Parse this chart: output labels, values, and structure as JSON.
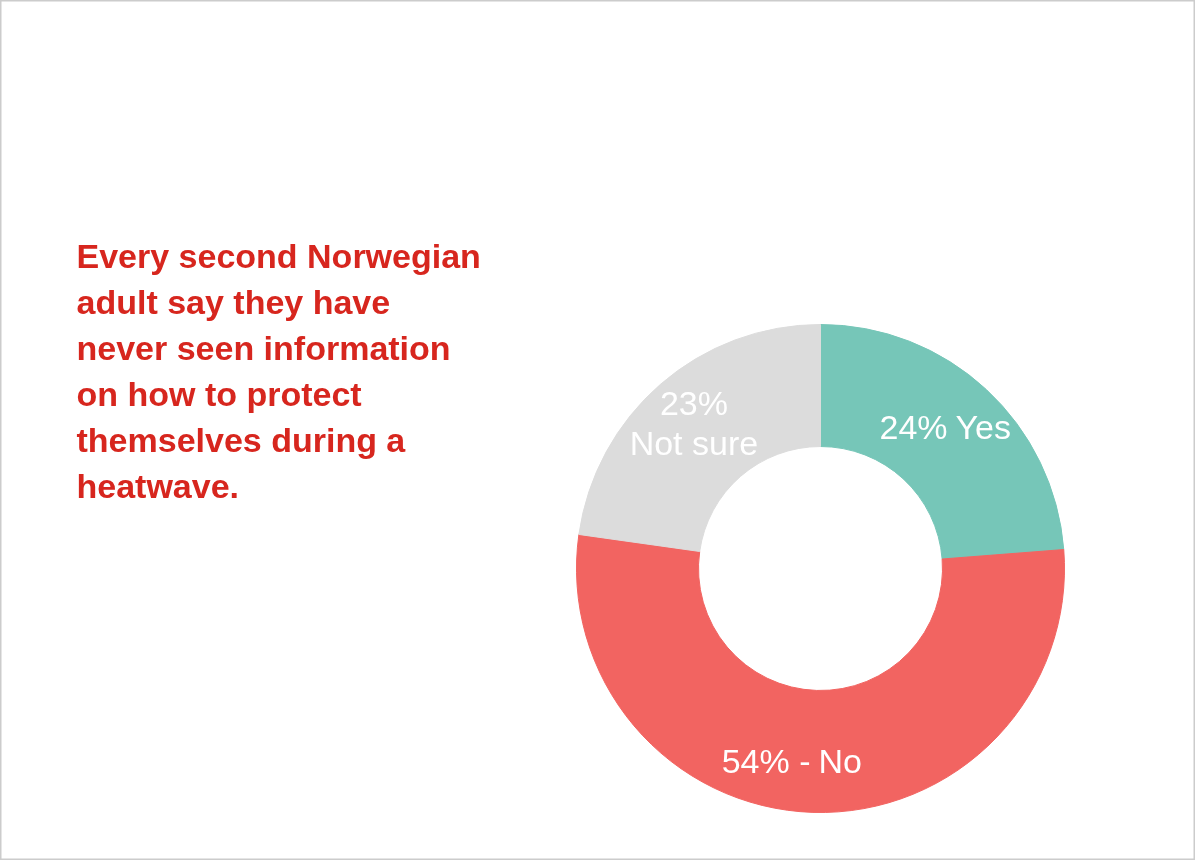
{
  "chart_data": {
    "type": "donut",
    "title": "Every second Norwegian adult say they have never seen information on how to protect themselves during a heatwave.",
    "categories": [
      "Yes",
      "No",
      "Not sure"
    ],
    "values": [
      24,
      54,
      23
    ],
    "colors": [
      "#76c6b8",
      "#f26461",
      "#dcdcdc"
    ],
    "value_labels": [
      "24%",
      "54% -",
      "23%"
    ]
  }
}
